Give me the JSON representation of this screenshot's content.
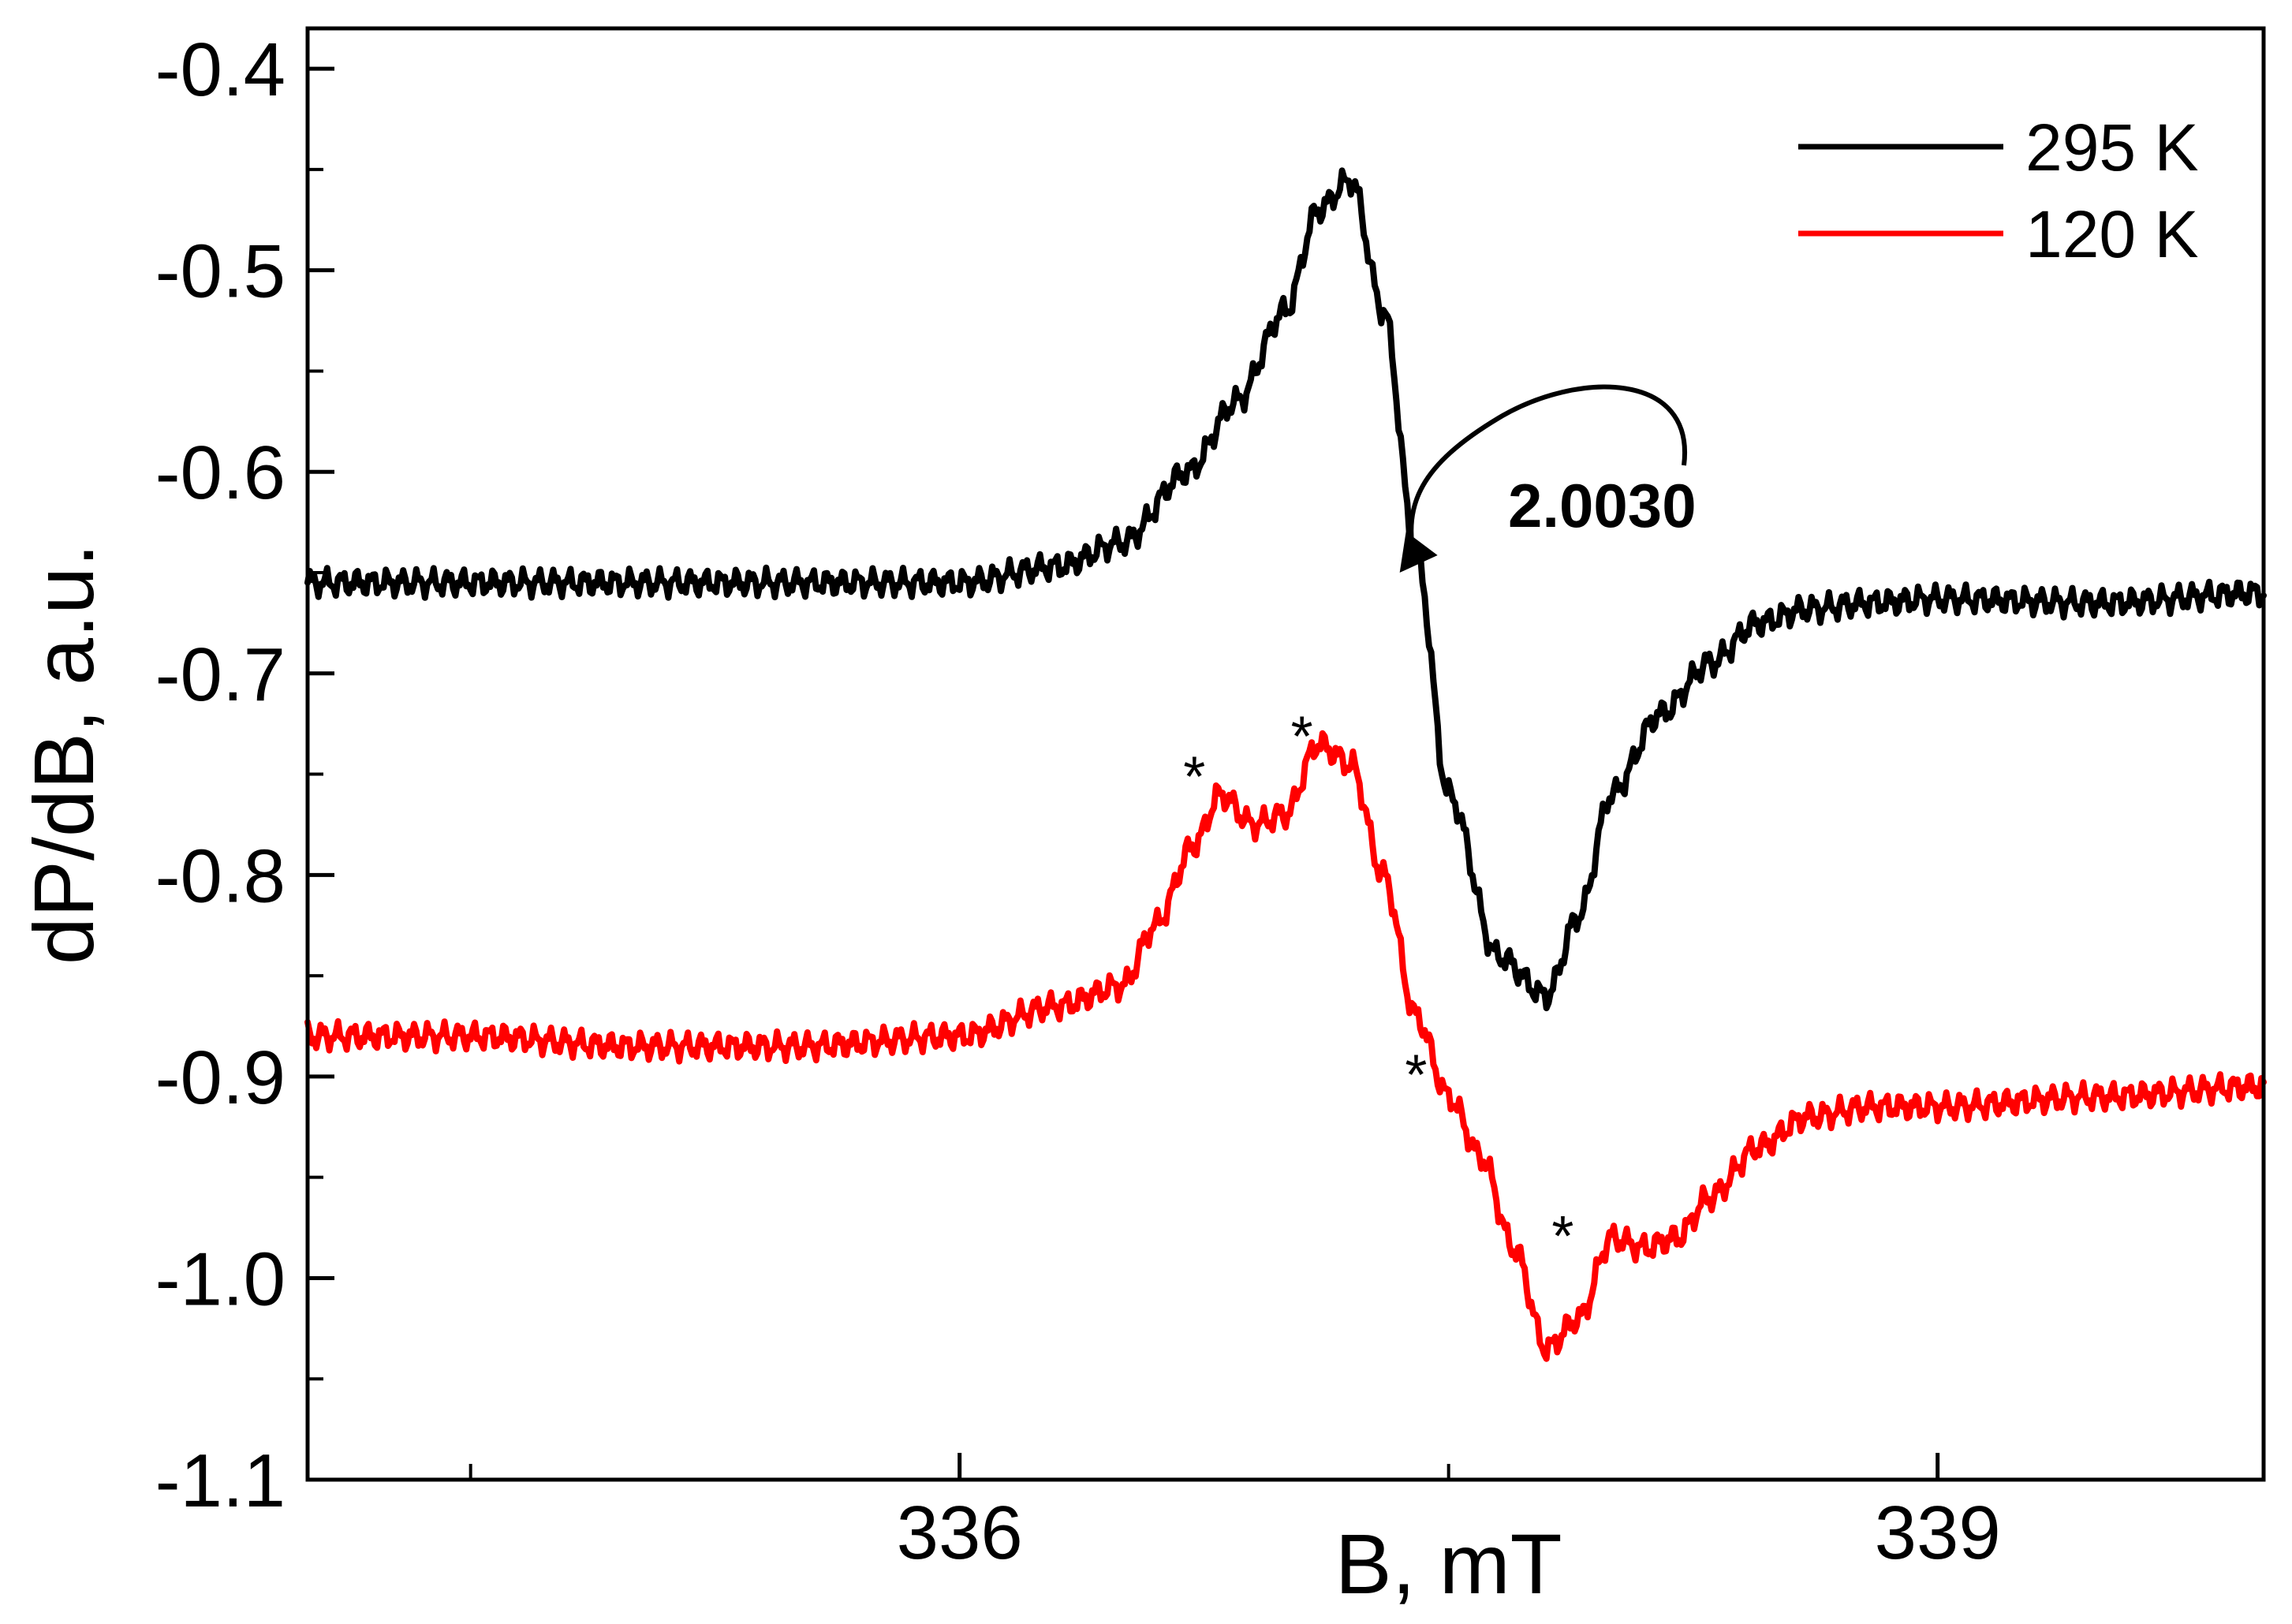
{
  "chart_data": {
    "type": "line",
    "title": "",
    "xlabel": "B, mT",
    "ylabel": "dP/dB, a.u.",
    "xlim": [
      334,
      340
    ],
    "ylim": [
      -1.1,
      -0.38
    ],
    "x_major_ticks": [
      336,
      339
    ],
    "x_minor_ticks": [
      334.5,
      337.5
    ],
    "y_major_ticks": [
      -0.4,
      -0.5,
      -0.6,
      -0.7,
      -0.8,
      -0.9,
      -1.0,
      -1.1
    ],
    "y_tick_labels": [
      "-0.4",
      "-0.5",
      "-0.6",
      "-0.7",
      "-0.8",
      "-0.9",
      "-1.0",
      "-1.1"
    ],
    "x_tick_labels": [
      "336",
      "339"
    ],
    "grid": false,
    "legend_position": "top-right",
    "series": [
      {
        "name": "295 K",
        "color": "#000000",
        "x": [
          334.0,
          334.5,
          335.0,
          335.5,
          336.0,
          336.3,
          336.5,
          336.7,
          336.85,
          337.0,
          337.1,
          337.2,
          337.3,
          337.4,
          337.5,
          337.65,
          337.8,
          337.9,
          338.0,
          338.15,
          338.3,
          338.45,
          338.6,
          338.8,
          339.0,
          339.5,
          340.0
        ],
        "y": [
          -0.655,
          -0.655,
          -0.655,
          -0.655,
          -0.655,
          -0.647,
          -0.635,
          -0.6,
          -0.565,
          -0.52,
          -0.47,
          -0.455,
          -0.52,
          -0.64,
          -0.76,
          -0.84,
          -0.86,
          -0.82,
          -0.76,
          -0.72,
          -0.695,
          -0.675,
          -0.668,
          -0.665,
          -0.663,
          -0.665,
          -0.66
        ]
      },
      {
        "name": "120 K",
        "color": "#ff0000",
        "x": [
          334.0,
          334.5,
          335.0,
          335.5,
          336.0,
          336.3,
          336.5,
          336.6,
          336.72,
          336.8,
          336.9,
          337.0,
          337.1,
          337.2,
          337.3,
          337.4,
          337.5,
          337.6,
          337.7,
          337.8,
          337.9,
          338.0,
          338.1,
          338.2,
          338.3,
          338.45,
          338.6,
          338.8,
          339.0,
          339.5,
          340.0
        ],
        "y": [
          -0.88,
          -0.88,
          -0.885,
          -0.885,
          -0.88,
          -0.865,
          -0.855,
          -0.825,
          -0.785,
          -0.76,
          -0.775,
          -0.77,
          -0.735,
          -0.745,
          -0.8,
          -0.87,
          -0.91,
          -0.94,
          -0.985,
          -1.035,
          -1.02,
          -0.98,
          -0.985,
          -0.98,
          -0.96,
          -0.935,
          -0.92,
          -0.915,
          -0.915,
          -0.91,
          -0.905
        ]
      }
    ],
    "annotations": [
      {
        "text": "2.0030",
        "target_x": 337.35,
        "target_y": -0.65,
        "type": "curved-arrow"
      },
      {
        "text": "*",
        "x": 336.72,
        "y": -0.757
      },
      {
        "text": "*",
        "x": 337.05,
        "y": -0.737
      },
      {
        "text": "*",
        "x": 337.4,
        "y": -0.905
      },
      {
        "text": "*",
        "x": 337.85,
        "y": -0.985
      }
    ]
  }
}
